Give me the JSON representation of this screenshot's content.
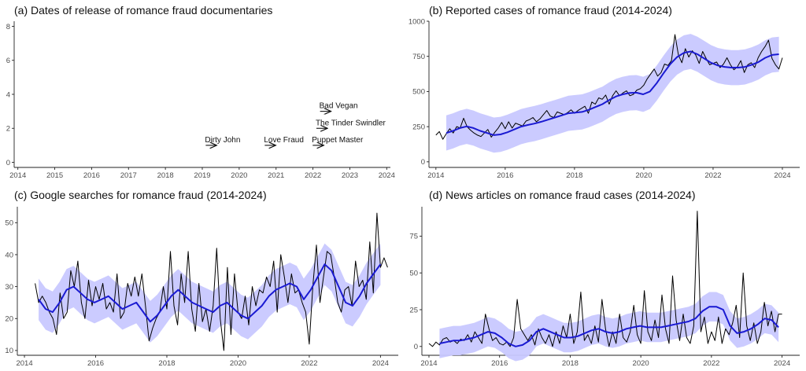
{
  "colors": {
    "band": "#c8c8ff",
    "smooth": "#1a1ad2",
    "raw": "#000000"
  },
  "chart_data": [
    {
      "id": "a",
      "type": "annotated-timeline",
      "title": "(a) Dates of release of romance fraud documentaries",
      "xlim": [
        2013.9,
        2024.1
      ],
      "ylim": [
        -0.3,
        8.3
      ],
      "xticks": [
        "2014",
        "2015",
        "2016",
        "2017",
        "2018",
        "2019",
        "2020",
        "2021",
        "2022",
        "2023",
        "2024"
      ],
      "yticks": [
        "0",
        "2",
        "4",
        "6",
        "8"
      ],
      "events": [
        {
          "label": "Dirty John",
          "x": 2019.2,
          "y": 1
        },
        {
          "label": "Love Fraud",
          "x": 2020.8,
          "y": 1
        },
        {
          "label": "Puppet Master",
          "x": 2022.1,
          "y": 1
        },
        {
          "label": "The Tinder Swindler",
          "x": 2022.2,
          "y": 2
        },
        {
          "label": "Bad Vegan",
          "x": 2022.3,
          "y": 3
        }
      ]
    },
    {
      "id": "b",
      "type": "line",
      "title": "(b) Reported cases of romance fraud (2014-2024)",
      "xlim": [
        2013.8,
        2024.5
      ],
      "ylim": [
        -40,
        1000
      ],
      "xticks": [
        "2014",
        "2016",
        "2018",
        "2020",
        "2022",
        "2024"
      ],
      "yticks": [
        "0",
        "250",
        "500",
        "750",
        "1000"
      ],
      "raw": {
        "start": 2014.0,
        "end": 2024.0,
        "values": [
          190,
          215,
          160,
          200,
          235,
          205,
          250,
          240,
          310,
          250,
          225,
          205,
          190,
          180,
          205,
          230,
          175,
          210,
          240,
          280,
          235,
          285,
          240,
          275,
          265,
          255,
          290,
          300,
          315,
          285,
          305,
          335,
          365,
          325,
          315,
          355,
          345,
          335,
          350,
          370,
          345,
          365,
          380,
          395,
          345,
          425,
          410,
          455,
          445,
          475,
          410,
          470,
          505,
          470,
          490,
          505,
          470,
          480,
          510,
          520,
          545,
          590,
          625,
          660,
          610,
          635,
          695,
          685,
          720,
          905,
          760,
          705,
          805,
          745,
          790,
          760,
          700,
          785,
          735,
          690,
          700,
          710,
          670,
          695,
          740,
          690,
          655,
          675,
          720,
          635,
          690,
          705,
          670,
          740,
          785,
          820,
          865,
          735,
          690,
          660,
          740
        ]
      },
      "smooth": {
        "start": 2014.3,
        "end": 2023.9,
        "values": [
          205,
          220,
          240,
          252,
          240,
          220,
          205,
          190,
          195,
          210,
          230,
          250,
          262,
          272,
          285,
          300,
          315,
          330,
          345,
          350,
          355,
          370,
          390,
          410,
          440,
          465,
          480,
          490,
          492,
          480,
          500,
          560,
          630,
          695,
          745,
          775,
          785,
          765,
          735,
          705,
          685,
          675,
          670,
          670,
          675,
          690,
          710,
          740,
          760,
          765
        ]
      },
      "band_halfwidth": 125
    },
    {
      "id": "c",
      "type": "line",
      "title": "(c) Google searches for romance fraud (2014-2024)",
      "xlim": [
        2013.8,
        2024.5
      ],
      "ylim": [
        8.5,
        55
      ],
      "xticks": [
        "2014",
        "2016",
        "2018",
        "2020",
        "2022",
        "2024"
      ],
      "yticks": [
        "10",
        "20",
        "30",
        "40",
        "50"
      ],
      "raw": {
        "start": 2014.3,
        "end": 2024.2,
        "values": [
          31,
          25,
          27,
          25,
          22,
          20,
          15,
          28,
          20,
          22,
          35,
          30,
          38,
          25,
          20,
          32,
          24,
          30,
          26,
          31,
          23,
          25,
          22,
          34,
          20,
          22,
          31,
          27,
          33,
          27,
          34,
          24,
          13,
          17,
          20,
          22,
          30,
          23,
          41,
          24,
          18,
          34,
          25,
          41,
          23,
          16,
          31,
          19,
          23,
          16,
          24,
          42,
          20,
          10,
          36,
          15,
          34,
          22,
          20,
          27,
          18,
          30,
          24,
          29,
          28,
          33,
          30,
          38,
          22,
          40,
          33,
          25,
          34,
          28,
          29,
          25,
          22,
          12,
          30,
          43,
          25,
          33,
          41,
          40,
          33,
          25,
          22,
          29,
          30,
          24,
          38,
          30,
          32,
          26,
          44,
          28,
          53,
          36,
          39,
          36
        ]
      },
      "smooth": {
        "start": 2014.4,
        "end": 2024.0,
        "values": [
          26,
          23,
          22,
          25,
          29,
          30,
          28,
          26,
          25,
          26,
          27,
          25,
          23,
          24,
          25,
          22,
          19,
          21,
          24,
          27,
          29,
          27,
          25,
          24,
          23,
          22,
          24,
          25,
          23,
          21,
          20,
          22,
          24,
          27,
          29,
          30,
          31,
          30,
          26,
          29,
          33,
          37,
          35,
          30,
          25,
          24,
          27,
          31,
          34,
          37
        ]
      },
      "band_halfwidth": 6.5
    },
    {
      "id": "d",
      "type": "line",
      "title": "(d) News articles on romance fraud cases (2014-2024)",
      "xlim": [
        2013.8,
        2024.5
      ],
      "ylim": [
        -6,
        95
      ],
      "xticks": [
        "2014",
        "2016",
        "2018",
        "2020",
        "2022",
        "2024"
      ],
      "yticks": [
        "0",
        "25",
        "50",
        "75"
      ],
      "raw": {
        "start": 2014.0,
        "end": 2024.0,
        "values": [
          2,
          0,
          3,
          1,
          5,
          6,
          3,
          4,
          2,
          5,
          4,
          8,
          3,
          10,
          6,
          2,
          22,
          12,
          4,
          6,
          2,
          1,
          3,
          0,
          6,
          32,
          12,
          8,
          4,
          8,
          1,
          12,
          6,
          2,
          8,
          0,
          10,
          2,
          14,
          6,
          22,
          2,
          10,
          37,
          4,
          8,
          2,
          14,
          3,
          32,
          12,
          0,
          10,
          2,
          22,
          6,
          3,
          10,
          28,
          8,
          2,
          38,
          10,
          4,
          18,
          6,
          35,
          12,
          2,
          48,
          18,
          4,
          22,
          6,
          2,
          14,
          92,
          10,
          20,
          2,
          10,
          4,
          20,
          2,
          12,
          8,
          16,
          28,
          6,
          50,
          14,
          4,
          16,
          2,
          10,
          30,
          14,
          24,
          10,
          22,
          22
        ]
      },
      "smooth": {
        "start": 2014.3,
        "end": 2023.9,
        "values": [
          2,
          3,
          4,
          4,
          5,
          6,
          8,
          10,
          9,
          6,
          2,
          0,
          1,
          4,
          10,
          12,
          10,
          8,
          6,
          6,
          7,
          9,
          11,
          12,
          10,
          9,
          10,
          12,
          13,
          14,
          13,
          13,
          13,
          14,
          15,
          16,
          17,
          19,
          24,
          27,
          27,
          25,
          14,
          9,
          10,
          12,
          15,
          19,
          18,
          13
        ]
      },
      "band_halfwidth": 10
    }
  ]
}
